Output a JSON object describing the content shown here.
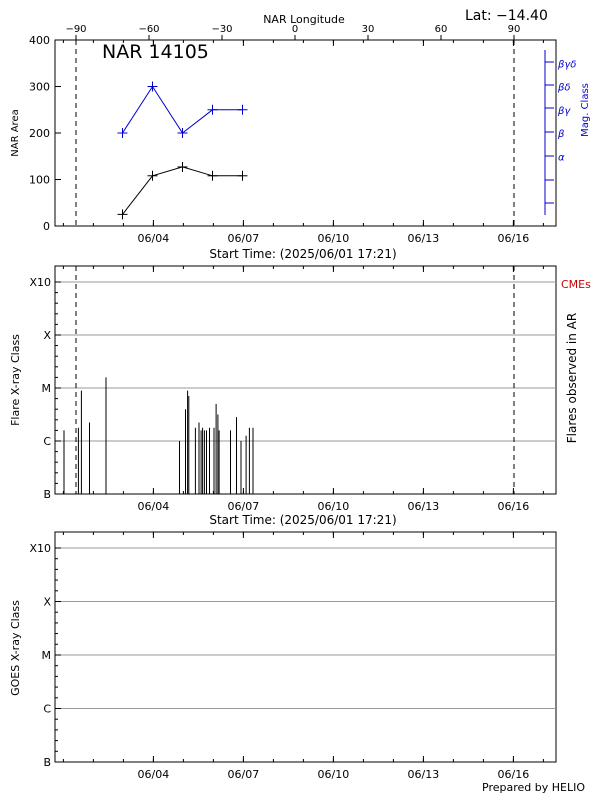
{
  "header": {
    "lat_label": "Lat: −14.40",
    "footer": "Prepared by HELIO"
  },
  "chart_data": [
    {
      "type": "line",
      "title": "NAR 14105",
      "xlabel": "Start Time: (2025/06/01 17:21)",
      "ylabel": "NAR Area",
      "y2label": "Mag. Class",
      "top_axis_label": "NAR Longitude",
      "top_ticks": [
        "−90",
        "−60",
        "−30",
        "0",
        "30",
        "60",
        "90"
      ],
      "top_tick_values": [
        -90,
        -60,
        -30,
        0,
        30,
        60,
        90
      ],
      "x_tick_labels": [
        "06/04",
        "06/07",
        "06/10",
        "06/13",
        "06/16"
      ],
      "x_tick_days": [
        3.28,
        6.28,
        9.28,
        12.28,
        15.28
      ],
      "xlim_days": [
        0,
        16.7
      ],
      "ylim": [
        0,
        400
      ],
      "y_ticks": [
        0,
        100,
        200,
        300,
        400
      ],
      "dashed_lines_days": [
        0.7,
        15.3
      ],
      "series": [
        {
          "name": "NAR Area",
          "color": "#000000",
          "x_days": [
            2.25,
            3.25,
            4.25,
            5.25,
            6.25
          ],
          "values": [
            25,
            108,
            127,
            108,
            108
          ]
        },
        {
          "name": "Mag. Class",
          "color": "#0000cc",
          "x_days": [
            2.25,
            3.25,
            4.25,
            5.25,
            6.25
          ],
          "values": [
            200,
            300,
            200,
            250,
            250
          ]
        }
      ],
      "mag_class_labels": [
        "α",
        "β",
        "βγ",
        "βδ",
        "βγδ"
      ],
      "mag_class_values": [
        150,
        200,
        250,
        300,
        350
      ]
    },
    {
      "type": "bar",
      "xlabel": "Start Time: (2025/06/01 17:21)",
      "ylabel": "Flare X-ray Class",
      "y2label": "Flares observed in AR",
      "legend": "CMEs",
      "legend_color": "#cc0000",
      "y_tick_labels": [
        "B",
        "C",
        "M",
        "X",
        "X10"
      ],
      "y_tick_values": [
        0,
        1,
        2,
        3,
        4
      ],
      "ylim": [
        0,
        4
      ],
      "x_tick_labels": [
        "06/04",
        "06/07",
        "06/10",
        "06/13",
        "06/16"
      ],
      "x_tick_days": [
        3.28,
        6.28,
        9.28,
        12.28,
        15.28
      ],
      "xlim_days": [
        0,
        16.7
      ],
      "dashed_lines_days": [
        0.7,
        15.3
      ],
      "flares_days": [
        0.3,
        0.78,
        0.88,
        1.15,
        1.7,
        4.15,
        4.35,
        4.42,
        4.46,
        4.68,
        4.8,
        4.87,
        4.92,
        4.98,
        5.05,
        5.15,
        5.3,
        5.37,
        5.43,
        5.47,
        5.85,
        6.05,
        6.2,
        6.37,
        6.48,
        6.6
      ],
      "flares_values": [
        1.2,
        1.25,
        1.95,
        1.35,
        2.2,
        1.0,
        1.6,
        1.95,
        1.85,
        1.25,
        1.35,
        1.2,
        1.25,
        1.2,
        1.2,
        1.25,
        1.25,
        1.7,
        1.5,
        1.2,
        1.2,
        1.45,
        1.0,
        1.1,
        1.25,
        1.25
      ]
    },
    {
      "type": "line",
      "ylabel": "GOES X-ray Class",
      "y_tick_labels": [
        "B",
        "C",
        "M",
        "X",
        "X10"
      ],
      "y_tick_values": [
        0,
        1,
        2,
        3,
        4
      ],
      "ylim": [
        0,
        4
      ],
      "x_tick_labels": [
        "06/04",
        "06/07",
        "06/10",
        "06/13",
        "06/16"
      ],
      "x_tick_days": [
        3.28,
        6.28,
        9.28,
        12.28,
        15.28
      ],
      "xlim_days": [
        0,
        16.7
      ]
    }
  ]
}
